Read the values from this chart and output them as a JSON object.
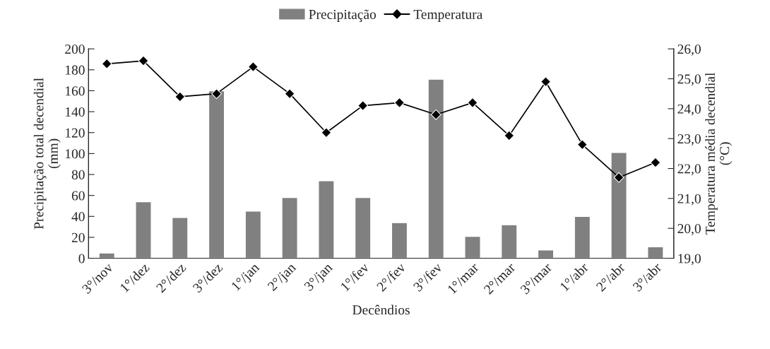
{
  "chart_data": {
    "type": "bar",
    "xlabel": "Decêndios",
    "ylabel": "Precipitação total decendial\n(mm)",
    "y2label": "Temperatura média decendial\n(°C)",
    "categories": [
      "3°/nov",
      "1°/dez",
      "2°/dez",
      "3°/dez",
      "1°/jan",
      "2°/jan",
      "3°/jan",
      "1°/fev",
      "2°/fev",
      "3°/fev",
      "1°/mar",
      "2°/mar",
      "3°/mar",
      "1°/abr",
      "2°/abr",
      "3°/abr"
    ],
    "series": [
      {
        "name": "Precipitação",
        "type": "bar",
        "color": "#808080",
        "values": [
          5,
          54,
          39,
          160,
          45,
          58,
          74,
          58,
          34,
          171,
          21,
          32,
          8,
          40,
          101,
          11
        ]
      },
      {
        "name": "Temperatura",
        "type": "line",
        "axis": "y2",
        "color": "#000000",
        "marker": "diamond",
        "values": [
          25.5,
          25.6,
          24.4,
          24.5,
          25.4,
          24.5,
          23.2,
          24.1,
          24.2,
          23.8,
          24.2,
          23.1,
          24.9,
          22.8,
          21.7,
          22.2
        ]
      }
    ],
    "ylim": [
      0,
      200
    ],
    "yticks": [
      0,
      20,
      40,
      60,
      80,
      100,
      120,
      140,
      160,
      180,
      200
    ],
    "y2lim": [
      19,
      26
    ],
    "y2ticks": [
      {
        "value": 19,
        "label": "19,0"
      },
      {
        "value": 20,
        "label": "20,0"
      },
      {
        "value": 21,
        "label": "21,0"
      },
      {
        "value": 22,
        "label": "22,0"
      },
      {
        "value": 23,
        "label": "23,0"
      },
      {
        "value": 24,
        "label": "24,0"
      },
      {
        "value": 25,
        "label": "25,0"
      },
      {
        "value": 26,
        "label": "26,0"
      }
    ],
    "legend": "top",
    "grid": false
  }
}
